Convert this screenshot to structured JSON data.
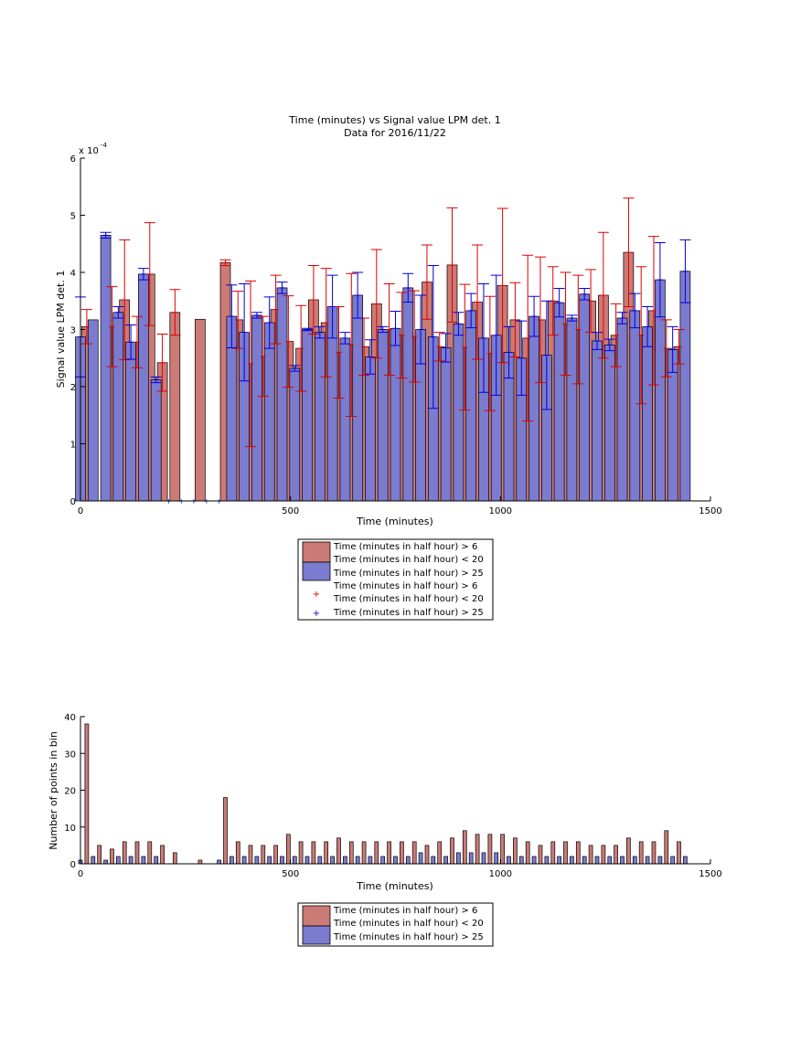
{
  "chart_data": [
    {
      "type": "bar",
      "title": "Time (minutes) vs Signal value LPM det. 1",
      "subtitle": "Data for 2016/11/22",
      "xlabel": "Time (minutes)",
      "ylabel": "Signal value LPM det. 1",
      "y_exponent_label": "x 10",
      "y_exponent": "-4",
      "xlim": [
        0,
        1500
      ],
      "ylim": [
        0,
        6
      ],
      "xticks": [
        "0",
        "500",
        "1000",
        "1500"
      ],
      "yticks": [
        "0",
        "1",
        "2",
        "3",
        "4",
        "5",
        "6"
      ],
      "grid": false,
      "legend_position": "below",
      "legend": [
        "Time (minutes in half hour) > 6",
        "Time (minutes in half hour) < 20",
        "Time (minutes in half hour) > 25",
        "Time (minutes in half hour) > 6",
        "Time (minutes in half hour) < 20",
        "Time (minutes in half hour) > 25"
      ],
      "colors": {
        "red_bar": "#cc7a76",
        "blue_bar": "#7b7bd0",
        "red_err": "#dd0000",
        "blue_err": "#0000dd"
      },
      "series": [
        {
          "name": "Time (minutes in half hour) > 6 / < 20",
          "x": [
            15,
            75,
            105,
            135,
            165,
            195,
            225,
            285,
            345,
            375,
            405,
            435,
            465,
            495,
            525,
            555,
            585,
            615,
            645,
            675,
            705,
            735,
            765,
            795,
            825,
            855,
            885,
            915,
            945,
            975,
            1005,
            1035,
            1065,
            1095,
            1125,
            1155,
            1185,
            1215,
            1245,
            1275,
            1305,
            1335,
            1365,
            1395,
            1425
          ],
          "values": [
            3.05,
            3.05,
            3.52,
            2.78,
            3.97,
            2.42,
            3.3,
            3.18,
            4.17,
            3.17,
            2.4,
            2.53,
            3.35,
            2.79,
            2.67,
            3.52,
            3.12,
            2.6,
            2.73,
            2.7,
            3.45,
            3.0,
            2.9,
            2.88,
            3.83,
            2.7,
            4.13,
            2.69,
            3.48,
            2.58,
            3.77,
            3.17,
            2.85,
            3.17,
            3.5,
            3.1,
            3.0,
            3.5,
            3.6,
            2.9,
            4.35,
            2.9,
            3.33,
            2.67,
            2.7
          ],
          "err": [
            0.3,
            0.7,
            1.05,
            0.45,
            0.9,
            0.5,
            0.4,
            0.0,
            0.05,
            0.5,
            1.45,
            0.7,
            0.6,
            0.8,
            0.75,
            0.6,
            0.95,
            0.8,
            1.25,
            0.5,
            0.95,
            0.8,
            0.75,
            0.8,
            0.65,
            0.25,
            1.0,
            1.1,
            1.0,
            1.0,
            1.35,
            0.65,
            1.45,
            1.1,
            0.6,
            0.9,
            0.95,
            0.55,
            1.1,
            0.55,
            0.95,
            1.2,
            1.3,
            0.5,
            0.3
          ]
        },
        {
          "name": "Time (minutes in half hour) > 25",
          "x": [
            0,
            30,
            60,
            90,
            120,
            150,
            180,
            210,
            240,
            270,
            300,
            330,
            360,
            390,
            420,
            450,
            480,
            510,
            540,
            570,
            600,
            630,
            660,
            690,
            720,
            750,
            780,
            810,
            840,
            870,
            900,
            930,
            960,
            990,
            1020,
            1050,
            1080,
            1110,
            1140,
            1170,
            1200,
            1230,
            1260,
            1290,
            1320,
            1350,
            1380,
            1410,
            1440
          ],
          "values": [
            2.87,
            3.17,
            4.65,
            3.3,
            2.78,
            3.97,
            2.12,
            0.0,
            0.0,
            0.0,
            0.0,
            0.0,
            3.23,
            2.95,
            3.25,
            3.12,
            3.73,
            2.32,
            3.0,
            2.95,
            3.4,
            2.85,
            3.6,
            2.52,
            3.0,
            3.02,
            3.73,
            3.0,
            2.87,
            2.68,
            3.1,
            3.33,
            2.85,
            2.9,
            2.6,
            2.5,
            3.23,
            2.55,
            3.47,
            3.2,
            3.62,
            2.8,
            2.73,
            3.2,
            3.33,
            3.05,
            3.87,
            2.65,
            4.02
          ],
          "err": [
            0.7,
            0.0,
            0.05,
            0.1,
            0.3,
            0.1,
            0.05,
            0.0,
            0.0,
            0.0,
            0.0,
            0.0,
            0.55,
            0.85,
            0.05,
            0.45,
            0.1,
            0.05,
            0.02,
            0.1,
            0.55,
            0.1,
            0.4,
            0.3,
            0.05,
            0.3,
            0.25,
            0.6,
            1.25,
            0.25,
            0.2,
            0.3,
            0.95,
            1.05,
            0.45,
            0.65,
            0.35,
            0.95,
            0.25,
            0.05,
            0.1,
            0.15,
            0.1,
            0.1,
            0.3,
            0.35,
            0.65,
            0.4,
            0.55
          ]
        }
      ]
    },
    {
      "type": "bar",
      "xlabel": "Time (minutes)",
      "ylabel": "Number of points in bin",
      "xlim": [
        0,
        1500
      ],
      "ylim": [
        0,
        40
      ],
      "xticks": [
        "0",
        "500",
        "1000",
        "1500"
      ],
      "yticks": [
        "0",
        "10",
        "20",
        "30",
        "40"
      ],
      "grid": false,
      "legend_position": "below",
      "legend": [
        "Time (minutes in half hour) > 6",
        "Time (minutes in half hour) < 20",
        "Time (minutes in half hour) > 25"
      ],
      "series": [
        {
          "name": "Time (minutes in half hour) > 6 / < 20",
          "x": [
            15,
            45,
            75,
            105,
            135,
            165,
            195,
            225,
            285,
            345,
            375,
            405,
            435,
            465,
            495,
            525,
            555,
            585,
            615,
            645,
            675,
            705,
            735,
            765,
            795,
            825,
            855,
            885,
            915,
            945,
            975,
            1005,
            1035,
            1065,
            1095,
            1125,
            1155,
            1185,
            1215,
            1245,
            1275,
            1305,
            1335,
            1365,
            1395,
            1425
          ],
          "values": [
            38,
            5,
            4,
            6,
            6,
            6,
            5,
            3,
            1,
            18,
            6,
            5,
            5,
            5,
            8,
            6,
            6,
            6,
            7,
            6,
            6,
            6,
            6,
            6,
            6,
            5,
            6,
            7,
            9,
            8,
            8,
            8,
            7,
            6,
            5,
            6,
            6,
            6,
            5,
            5,
            5,
            7,
            6,
            6,
            9,
            6
          ]
        },
        {
          "name": "Time (minutes in half hour) > 25",
          "x": [
            0,
            30,
            60,
            90,
            120,
            150,
            180,
            210,
            240,
            330,
            360,
            390,
            420,
            450,
            480,
            510,
            540,
            570,
            600,
            630,
            660,
            690,
            720,
            750,
            780,
            810,
            840,
            870,
            900,
            930,
            960,
            990,
            1020,
            1050,
            1080,
            1110,
            1140,
            1170,
            1200,
            1230,
            1260,
            1290,
            1320,
            1350,
            1380,
            1410,
            1440
          ],
          "values": [
            1,
            2,
            1,
            2,
            2,
            2,
            2,
            0,
            0,
            1,
            2,
            2,
            2,
            2,
            2,
            2,
            2,
            2,
            2,
            2,
            2,
            2,
            2,
            2,
            2,
            3,
            2,
            2,
            3,
            3,
            3,
            3,
            2,
            2,
            2,
            2,
            2,
            2,
            2,
            2,
            2,
            2,
            2,
            2,
            2,
            2,
            2
          ]
        }
      ]
    }
  ]
}
